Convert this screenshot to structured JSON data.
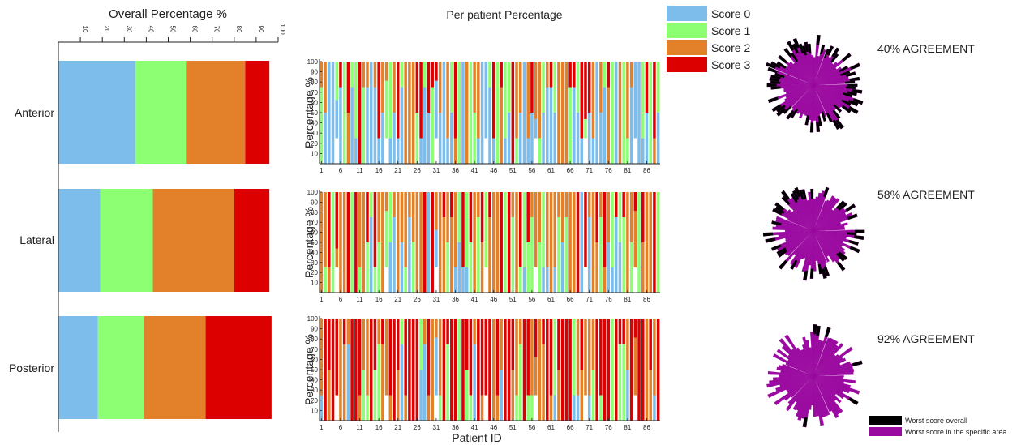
{
  "colors": {
    "score0": "#7dbdec",
    "score1": "#8cff72",
    "score2": "#e3812a",
    "score3": "#dd0000",
    "worst_overall": "#000000",
    "worst_specific": "#9b0aa0",
    "axis": "#222222"
  },
  "legend": {
    "labels": [
      "Score 0",
      "Score 1",
      "Score 2",
      "Score 3"
    ]
  },
  "chart_data": [
    {
      "id": "overall",
      "type": "bar",
      "orientation": "horizontal-stacked",
      "title": "Overall Percentage %",
      "categories": [
        "Anterior",
        "Lateral",
        "Posterior"
      ],
      "xlim": [
        0,
        100
      ],
      "ticks": [
        10,
        20,
        30,
        40,
        50,
        60,
        70,
        80,
        90,
        100
      ],
      "series": [
        {
          "name": "Score 0",
          "values": [
            35,
            19,
            18
          ]
        },
        {
          "name": "Score 1",
          "values": [
            23,
            24,
            21
          ]
        },
        {
          "name": "Score 2",
          "values": [
            27,
            37,
            28
          ]
        },
        {
          "name": "Score 3",
          "values": [
            11,
            16,
            30
          ]
        }
      ]
    },
    {
      "id": "per_patient",
      "type": "bar",
      "orientation": "vertical-stacked",
      "title": "Per patient Percentage",
      "xlabel": "Patient ID",
      "ylabel": "Percentage %",
      "n_patients": 89,
      "xticks": [
        1,
        6,
        11,
        16,
        21,
        26,
        31,
        36,
        41,
        46,
        51,
        56,
        61,
        66,
        71,
        76,
        81,
        86
      ],
      "yticks": [
        10,
        20,
        30,
        40,
        50,
        60,
        70,
        80,
        90,
        100
      ],
      "ylim": [
        0,
        100
      ],
      "panels": [
        {
          "name": "Anterior",
          "pattern": [
            1,
            2,
            1,
            3,
            0,
            2,
            1,
            0,
            2,
            3,
            0,
            0,
            1,
            2,
            0,
            3,
            1,
            0,
            2,
            0,
            0,
            0,
            0,
            1,
            0,
            3,
            2,
            0,
            1,
            0,
            3,
            2,
            0,
            1,
            2,
            3,
            0,
            2,
            1,
            2
          ]
        },
        {
          "name": "Lateral",
          "pattern": [
            2,
            3,
            1,
            2,
            0,
            2,
            3,
            1,
            2,
            0,
            1,
            2,
            3,
            2,
            1,
            0,
            2,
            3,
            2,
            1,
            2,
            3,
            0,
            2,
            1,
            2,
            3,
            2,
            2,
            1,
            0,
            2,
            3,
            1,
            2,
            2,
            3,
            1,
            2,
            0
          ]
        },
        {
          "name": "Posterior",
          "pattern": [
            3,
            2,
            3,
            1,
            3,
            2,
            0,
            3,
            3,
            2,
            1,
            3,
            2,
            3,
            3,
            0,
            2,
            3,
            1,
            3,
            2,
            3,
            3,
            2,
            1,
            3,
            2,
            3,
            0,
            3,
            3,
            2,
            3,
            1,
            3,
            2,
            3,
            3,
            2,
            1
          ]
        }
      ]
    },
    {
      "id": "agreement",
      "type": "pie",
      "subtype": "polar-bars",
      "panels": [
        {
          "label": "40% AGREEMENT",
          "agreement": 0.4
        },
        {
          "label": "58% AGREEMENT",
          "agreement": 0.58
        },
        {
          "label": "92% AGREEMENT",
          "agreement": 0.92
        }
      ],
      "legend": [
        "Worst score overall",
        "Worst score in the specific area"
      ]
    }
  ]
}
